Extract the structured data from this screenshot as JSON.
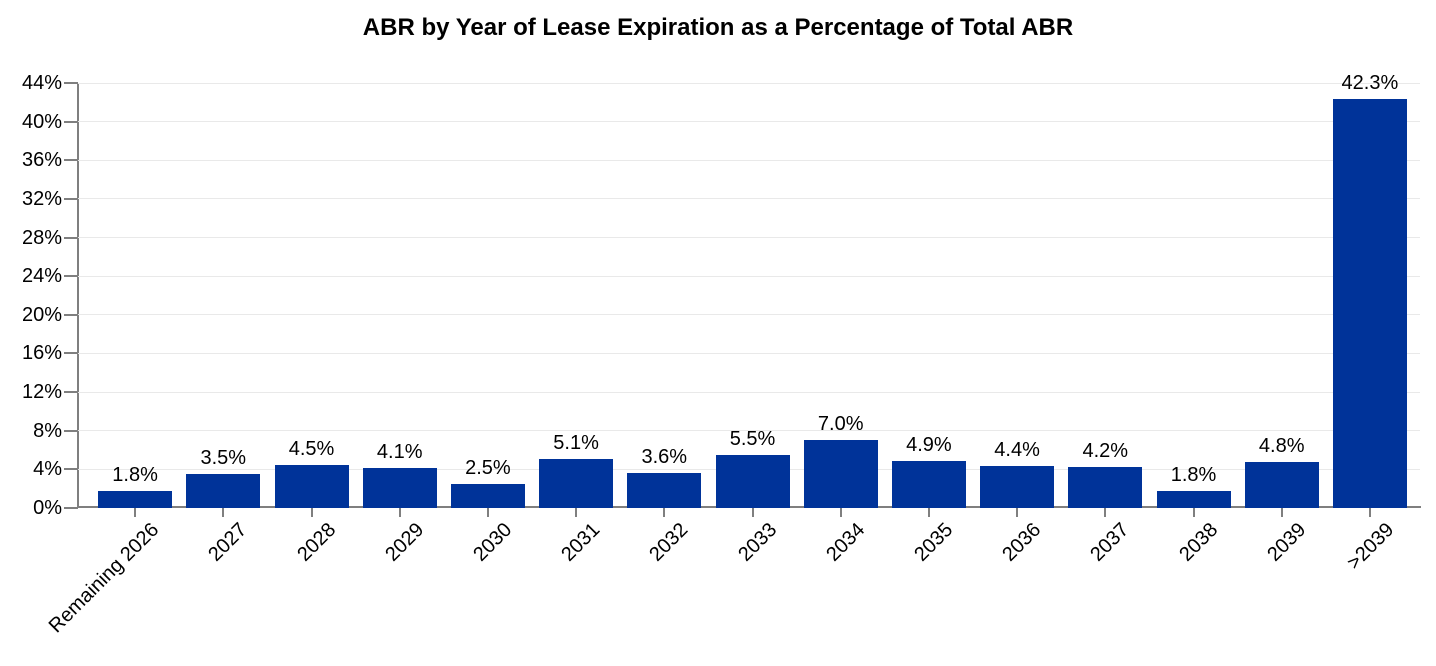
{
  "title": "ABR by Year of Lease Expiration as a Percentage of Total ABR",
  "chart_data": {
    "type": "bar",
    "title": "ABR by Year of Lease Expiration as a Percentage of Total ABR",
    "xlabel": "",
    "ylabel": "",
    "categories": [
      "Remaining 2026",
      "2027",
      "2028",
      "2029",
      "2030",
      "2031",
      "2032",
      "2033",
      "2034",
      "2035",
      "2036",
      "2037",
      "2038",
      "2039",
      ">2039"
    ],
    "values": [
      1.8,
      3.5,
      4.5,
      4.1,
      2.5,
      5.1,
      3.6,
      5.5,
      7.0,
      4.9,
      4.4,
      4.2,
      1.8,
      4.8,
      42.3
    ],
    "data_labels": [
      "1.8%",
      "3.5%",
      "4.5%",
      "4.1%",
      "2.5%",
      "5.1%",
      "3.6%",
      "5.5%",
      "7.0%",
      "4.9%",
      "4.4%",
      "4.2%",
      "1.8%",
      "4.8%",
      "42.3%"
    ],
    "ylim": [
      0,
      44
    ],
    "y_ticks": [
      0,
      4,
      8,
      12,
      16,
      20,
      24,
      28,
      32,
      36,
      40,
      44
    ],
    "y_tick_labels": [
      "0%",
      "4%",
      "8%",
      "12%",
      "16%",
      "20%",
      "24%",
      "28%",
      "32%",
      "36%",
      "40%",
      "44%"
    ],
    "grid": "horizontal",
    "legend": "none",
    "x_label_rotation_deg": 45
  },
  "colors": {
    "bar": "#003399",
    "axis": "#7f7f7f",
    "gridline": "#e9e9e9",
    "text": "#000000",
    "background": "#ffffff"
  }
}
